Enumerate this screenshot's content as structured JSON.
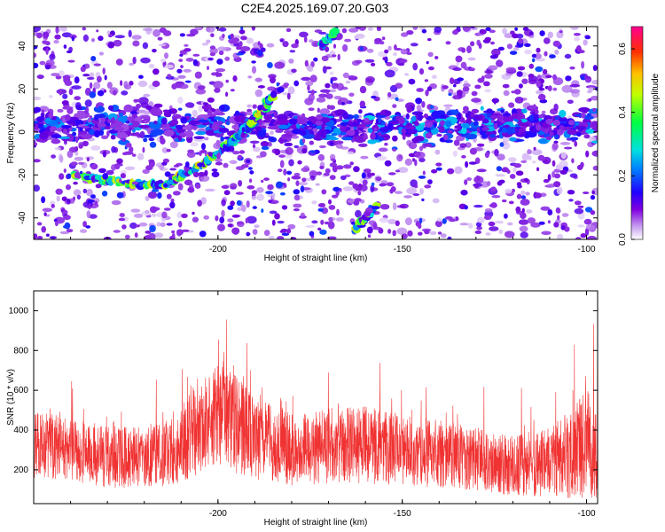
{
  "figure": {
    "title": "C2E4.2025.169.07.20.G03"
  },
  "chart_data": [
    {
      "type": "heatmap",
      "xlabel": "Height of straight line (km)",
      "ylabel": "Frequency (Hz)",
      "xlim": [
        -250,
        -97
      ],
      "ylim": [
        -50,
        49
      ],
      "x_ticks": [
        -200,
        -150,
        -100
      ],
      "y_ticks": [
        -40,
        -20,
        0,
        20,
        40
      ],
      "colorbar": {
        "label": "Normalized spectral amplitude",
        "range": [
          0.0,
          0.67
        ],
        "ticks": [
          0.0,
          0.2,
          0.4,
          0.6
        ],
        "colormap": [
          "#ffffff",
          "#7a00e6",
          "#0000ff",
          "#00ffff",
          "#00ff00",
          "#ffff00",
          "#ff8000",
          "#ff0000",
          "#ff00a0"
        ]
      },
      "features": [
        {
          "name": "horizontal band",
          "x": [
            -250,
            -97
          ],
          "y": 3,
          "amplitude": 0.25
        },
        {
          "name": "left rising trace",
          "points": [
            [
              -240,
              -20
            ],
            [
              -225,
              -24
            ],
            [
              -215,
              -25
            ],
            [
              -205,
              -16
            ],
            [
              -198,
              -7
            ],
            [
              -193,
              0
            ],
            [
              -188,
              10
            ],
            [
              -185,
              17
            ]
          ],
          "amplitude": 0.45
        },
        {
          "name": "upper diagonal",
          "points": [
            [
              -172,
              40
            ],
            [
              -168,
              47
            ]
          ],
          "amplitude": 0.4
        },
        {
          "name": "lower diagonal",
          "points": [
            [
              -163,
              -46
            ],
            [
              -157,
              -34
            ]
          ],
          "amplitude": 0.45
        }
      ]
    },
    {
      "type": "line",
      "xlabel": "Height of straight line (km)",
      "ylabel": "SNR (10 * v/v)",
      "xlim": [
        -250,
        -97
      ],
      "ylim": [
        30,
        1100
      ],
      "x_ticks": [
        -200,
        -150,
        -100
      ],
      "y_ticks": [
        200,
        400,
        600,
        800,
        1000
      ],
      "color": "#f03232",
      "envelope": {
        "x": [
          -250,
          -240,
          -230,
          -220,
          -210,
          -205,
          -200,
          -195,
          -190,
          -180,
          -170,
          -160,
          -150,
          -140,
          -130,
          -120,
          -110,
          -105,
          -100,
          -97
        ],
        "base": [
          330,
          300,
          270,
          260,
          320,
          420,
          470,
          430,
          360,
          300,
          320,
          330,
          300,
          280,
          250,
          220,
          240,
          270,
          330,
          300
        ],
        "spread": [
          170,
          160,
          160,
          150,
          200,
          240,
          270,
          250,
          210,
          180,
          190,
          200,
          180,
          170,
          160,
          150,
          180,
          220,
          280,
          250
        ]
      }
    }
  ]
}
